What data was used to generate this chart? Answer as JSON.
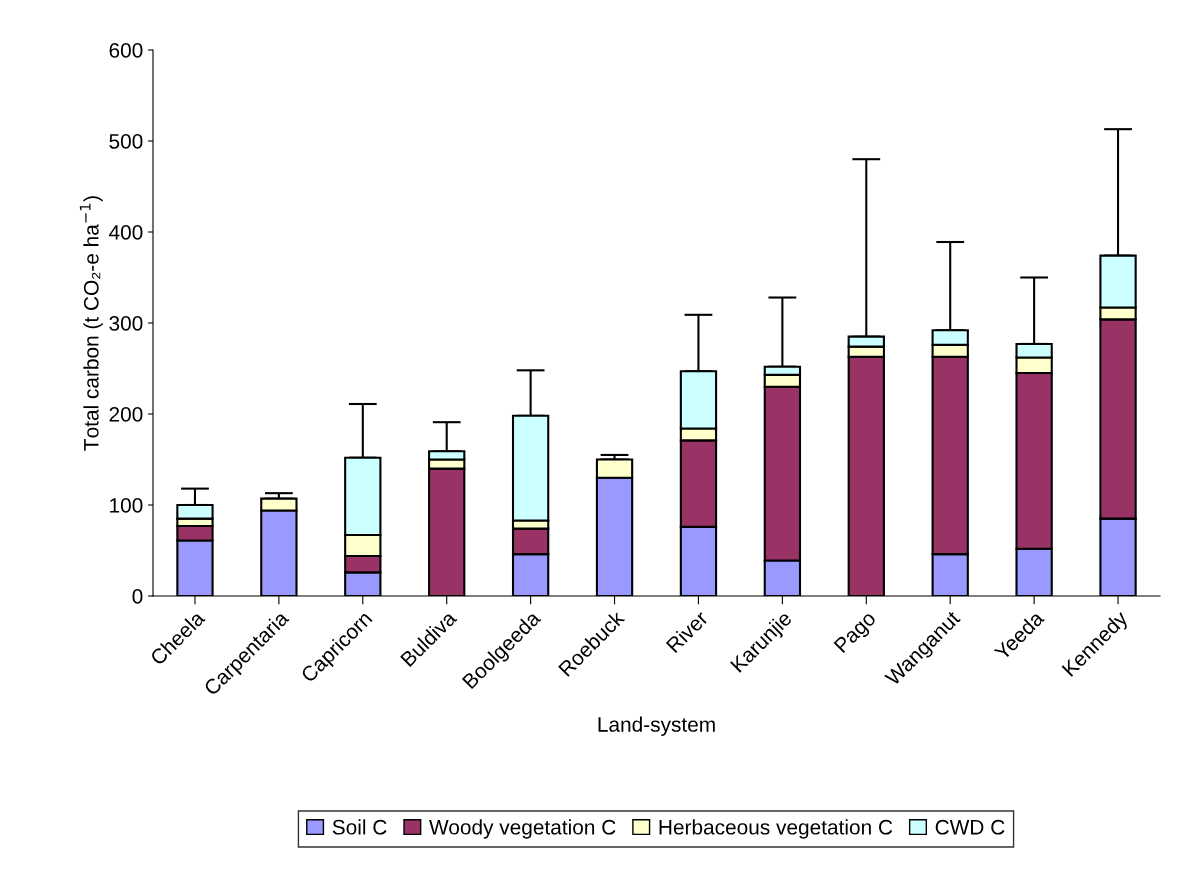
{
  "chart_data": {
    "type": "bar",
    "stacked": true,
    "xlabel": "Land-system",
    "ylabel": "Total carbon (t CO₂-e ha$^{−1}$)",
    "categories": [
      "Cheela",
      "Carpentaria",
      "Capricorn",
      "Buldiva",
      "Boolgeeda",
      "Roebuck",
      "River",
      "Karunjie",
      "Pago",
      "Wanganut",
      "Yeeda",
      "Kennedy"
    ],
    "series": [
      {
        "name": "Soil C",
        "color": "#9999ff",
        "values": [
          61,
          94,
          26,
          0,
          46,
          130,
          76,
          39,
          0,
          46,
          52,
          85
        ]
      },
      {
        "name": "Woody vegetation C",
        "color": "#993366",
        "values": [
          16,
          0,
          18,
          140,
          28,
          0,
          95,
          191,
          263,
          217,
          193,
          219
        ]
      },
      {
        "name": "Herbaceous vegetation C",
        "color": "#ffffcc",
        "values": [
          8,
          13,
          23,
          10,
          9,
          20,
          13,
          13,
          11,
          13,
          17,
          13
        ]
      },
      {
        "name": "CWD C",
        "color": "#ccffff",
        "values": [
          15,
          0,
          85,
          9,
          115,
          0,
          63,
          9,
          11,
          16,
          15,
          57
        ],
        "errors": [
          [
            100,
            118
          ],
          [
            107,
            113
          ],
          [
            152,
            211
          ],
          [
            159,
            191
          ],
          [
            198,
            248
          ],
          [
            150,
            155
          ],
          [
            247,
            309
          ],
          [
            252,
            328
          ],
          [
            285,
            480
          ],
          [
            292,
            389
          ],
          [
            277,
            350
          ],
          [
            374,
            513
          ]
        ]
      }
    ],
    "ylim": [
      0,
      600
    ],
    "yticks": [
      0,
      100,
      200,
      300,
      400,
      500,
      600
    ],
    "grid": false,
    "legend": "bottom"
  }
}
